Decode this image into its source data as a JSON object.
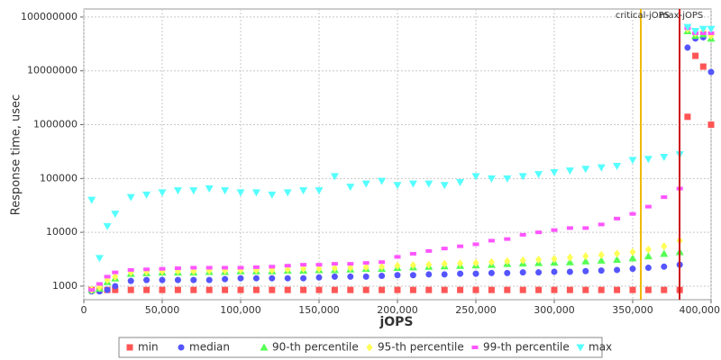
{
  "chart_data": {
    "type": "scatter",
    "y_label": "Response time, usec",
    "x_label": "jOPS",
    "log_y": true,
    "grid": true,
    "xlim": [
      0,
      400000
    ],
    "ylim": [
      560,
      141000000
    ],
    "xticks": [
      0,
      {
        "value": 50000,
        "label": "50,000"
      },
      {
        "value": 100000,
        "label": "100,000"
      },
      {
        "value": 150000,
        "label": "150,000"
      },
      {
        "value": 200000,
        "label": "200,000"
      },
      {
        "value": 250000,
        "label": "250,000"
      },
      {
        "value": 300000,
        "label": "300,000"
      },
      {
        "value": 350000,
        "label": "350,000"
      },
      {
        "value": 400000,
        "label": "400,000"
      }
    ],
    "yticks": [
      1000,
      10000,
      100000,
      1000000,
      10000000,
      100000000
    ],
    "vlines": [
      {
        "label": "critical-jOPS",
        "value": 355200,
        "color": "#f0b800"
      },
      {
        "label": "max-jOPS",
        "value": 379900,
        "color": "#cc1111"
      }
    ],
    "x": [
      5000,
      10000,
      15000,
      20000,
      30000,
      40000,
      50000,
      60000,
      70000,
      80000,
      90000,
      100000,
      110000,
      120000,
      130000,
      140000,
      150000,
      160000,
      170000,
      180000,
      190000,
      200000,
      210000,
      220000,
      230000,
      240000,
      250000,
      260000,
      270000,
      280000,
      290000,
      300000,
      310000,
      320000,
      330000,
      340000,
      350000,
      360000,
      370000,
      380000,
      385000,
      390000,
      395000,
      400000
    ],
    "series": [
      {
        "name": "min",
        "color": "#ff5555",
        "marker": "square",
        "values": [
          850,
          850,
          850,
          850,
          850,
          850,
          850,
          850,
          850,
          850,
          850,
          850,
          850,
          850,
          850,
          850,
          850,
          850,
          850,
          850,
          850,
          850,
          850,
          850,
          850,
          850,
          850,
          850,
          850,
          850,
          850,
          850,
          850,
          850,
          850,
          850,
          850,
          850,
          850,
          850,
          1400000,
          19000000,
          12000000,
          1000000
        ]
      },
      {
        "name": "median",
        "color": "#5555ff",
        "marker": "circle",
        "values": [
          800,
          800,
          850,
          1000,
          1250,
          1300,
          1300,
          1300,
          1300,
          1300,
          1350,
          1400,
          1400,
          1400,
          1400,
          1400,
          1450,
          1500,
          1500,
          1500,
          1550,
          1600,
          1600,
          1650,
          1650,
          1700,
          1700,
          1750,
          1750,
          1800,
          1800,
          1850,
          1850,
          1900,
          1950,
          2000,
          2100,
          2200,
          2300,
          2500,
          27000000,
          40000000,
          42000000,
          9500000
        ]
      },
      {
        "name": "90-th percentile",
        "color": "#55ff55",
        "marker": "triangle-up",
        "values": [
          850,
          900,
          1200,
          1400,
          1700,
          1750,
          1800,
          1800,
          1800,
          1850,
          1850,
          1900,
          1900,
          1900,
          1950,
          1950,
          2000,
          2000,
          2050,
          2100,
          2100,
          2200,
          2250,
          2300,
          2350,
          2400,
          2450,
          2500,
          2600,
          2650,
          2700,
          2750,
          2800,
          2900,
          3000,
          3100,
          3300,
          3600,
          4000,
          4300,
          55000000,
          45000000,
          48000000,
          40000000
        ]
      },
      {
        "name": "95-th percentile",
        "color": "#ffff55",
        "marker": "diamond",
        "values": [
          850,
          950,
          1300,
          1500,
          1800,
          1850,
          1900,
          1900,
          1900,
          1950,
          1950,
          2000,
          2000,
          2000,
          2050,
          2100,
          2100,
          2150,
          2200,
          2250,
          2300,
          2400,
          2450,
          2500,
          2600,
          2650,
          2700,
          2800,
          2900,
          3000,
          3100,
          3200,
          3400,
          3600,
          3800,
          4000,
          4300,
          4800,
          5500,
          7000,
          60000000,
          50000000,
          55000000,
          45000000
        ]
      },
      {
        "name": "99-th percentile",
        "color": "#ff55ff",
        "marker": "bar",
        "values": [
          850,
          1100,
          1500,
          1800,
          2000,
          2050,
          2100,
          2150,
          2200,
          2200,
          2200,
          2200,
          2250,
          2300,
          2400,
          2500,
          2500,
          2600,
          2600,
          2700,
          2800,
          3500,
          4000,
          4500,
          5000,
          5500,
          6000,
          7000,
          7500,
          9000,
          10000,
          11000,
          12000,
          12000,
          14000,
          18000,
          22000,
          30000,
          45000,
          65000,
          62000000,
          50000000,
          50000000,
          50000000
        ]
      },
      {
        "name": "max",
        "color": "#55ffff",
        "marker": "triangle-down",
        "values": [
          40000,
          3300,
          13000,
          22000,
          45000,
          50000,
          55000,
          60000,
          60000,
          65000,
          60000,
          55000,
          55000,
          50000,
          55000,
          60000,
          60000,
          110000,
          70000,
          80000,
          90000,
          75000,
          80000,
          80000,
          75000,
          85000,
          110000,
          100000,
          100000,
          110000,
          120000,
          130000,
          140000,
          150000,
          160000,
          170000,
          220000,
          230000,
          250000,
          280000,
          65000000,
          55000000,
          60000000,
          60000000
        ]
      }
    ]
  }
}
